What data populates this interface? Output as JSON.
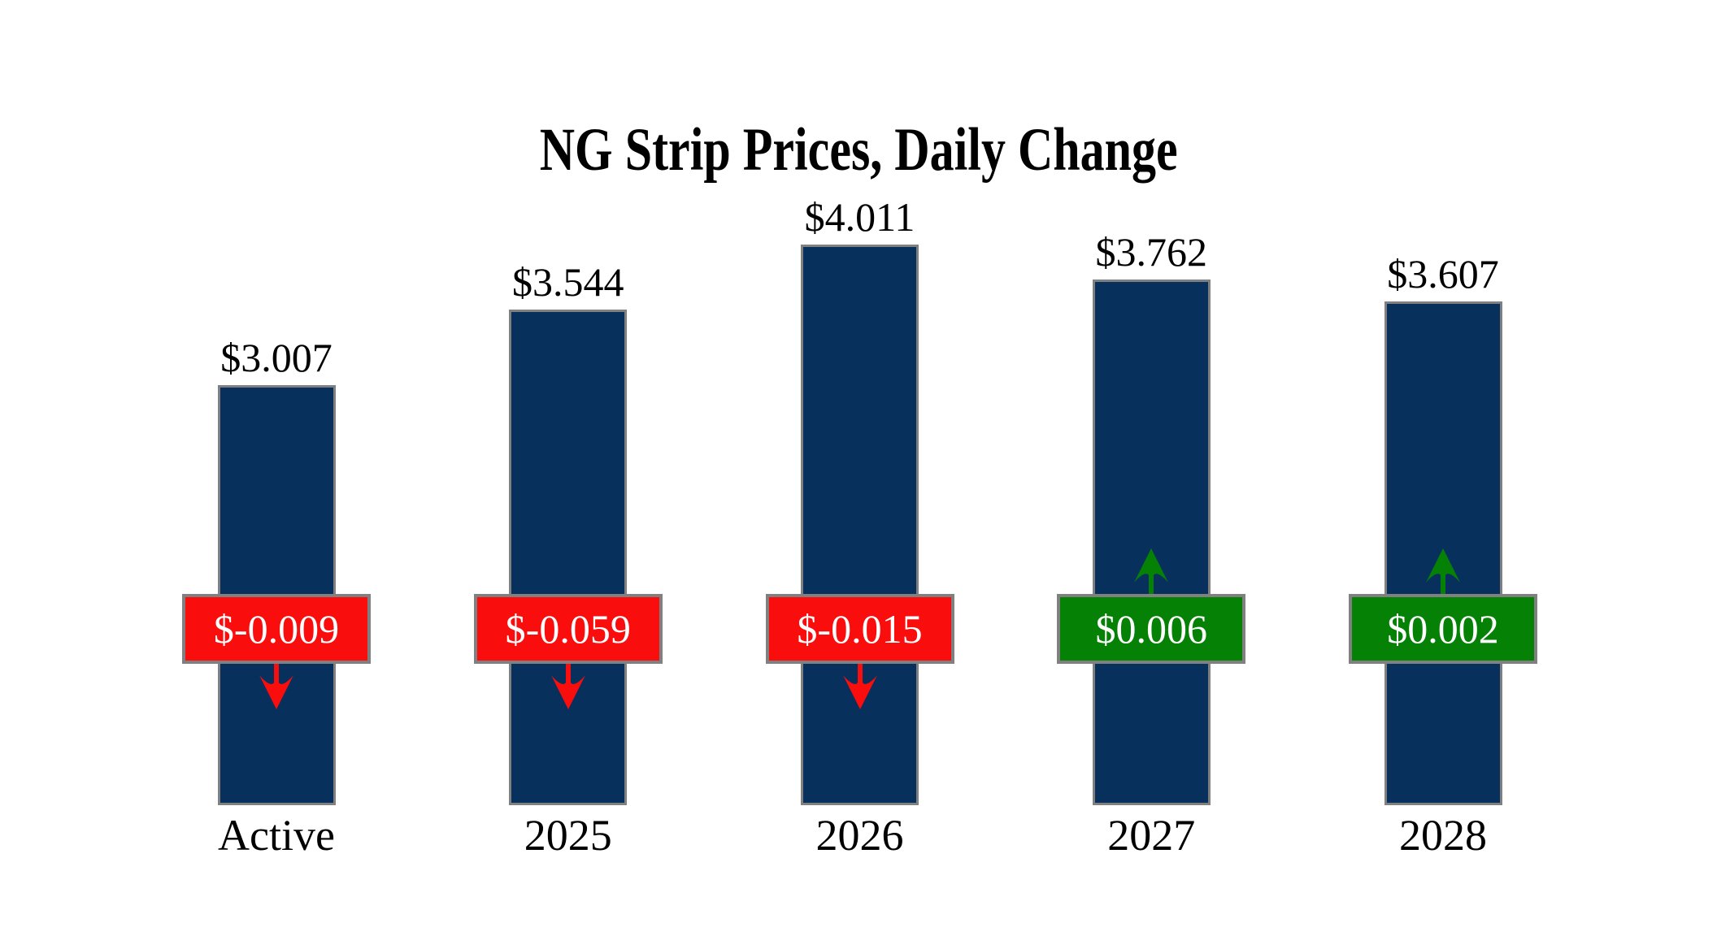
{
  "chart_data": {
    "type": "bar",
    "title": "NG Strip Prices, Daily Change",
    "categories": [
      "Active",
      "2025",
      "2026",
      "2027",
      "2028"
    ],
    "values": [
      3.007,
      3.544,
      4.011,
      3.762,
      3.607
    ],
    "value_labels": [
      "$3.007",
      "$3.544",
      "$4.011",
      "$3.762",
      "$3.607"
    ],
    "changes": [
      -0.009,
      -0.059,
      -0.015,
      0.006,
      0.002
    ],
    "change_labels": [
      "$-0.009",
      "$-0.059",
      "$-0.015",
      "$0.006",
      "$0.002"
    ],
    "change_directions": [
      "down",
      "down",
      "down",
      "up",
      "up"
    ],
    "ylim": [
      0,
      4.2
    ],
    "grid": false,
    "legend": false,
    "axis_lines": false,
    "colors": {
      "background": "#FFFFFF",
      "bar_fill": "#08305C",
      "bar_border": "#808080",
      "negative": "#F90D0D",
      "positive": "#058205",
      "badge_border": "#808080",
      "badge_text": "#FFFFFF",
      "label_text": "#000000"
    }
  }
}
